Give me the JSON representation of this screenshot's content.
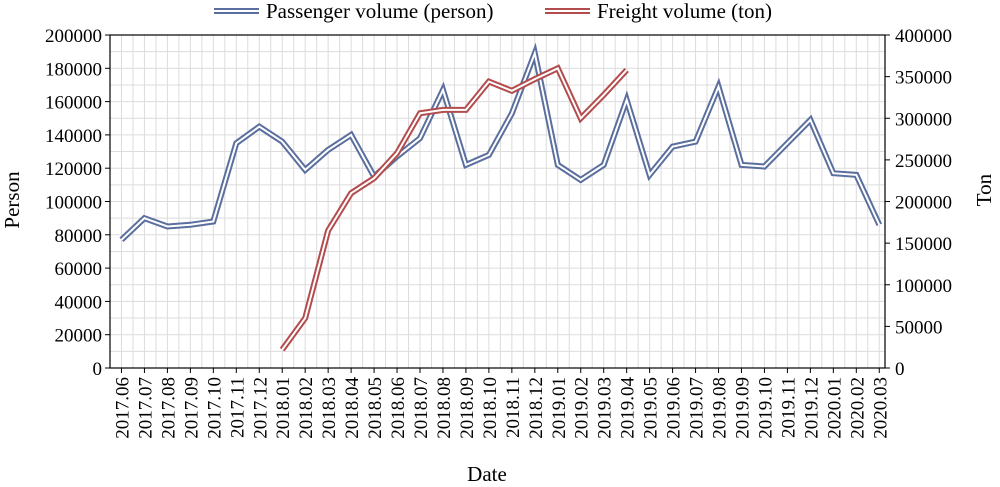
{
  "chart_data": {
    "type": "line",
    "xlabel": "Date",
    "ylabel_left": "Person",
    "ylabel_right": "Ton",
    "ylim_left": [
      0,
      200000
    ],
    "ylim_right": [
      0,
      400000
    ],
    "yticks_left": [
      "0",
      "20000",
      "40000",
      "60000",
      "80000",
      "100000",
      "120000",
      "140000",
      "160000",
      "180000",
      "200000"
    ],
    "yticks_right": [
      "0",
      "50000",
      "100000",
      "150000",
      "200000",
      "250000",
      "300000",
      "350000",
      "400000"
    ],
    "legend_position": "top-center",
    "grid": true,
    "categories": [
      "2017.06",
      "2017.07",
      "2017.08",
      "2017.09",
      "2017.10",
      "2017.11",
      "2017.12",
      "2018.01",
      "2018.02",
      "2018.03",
      "2018.04",
      "2018.05",
      "2018.06",
      "2018.07",
      "2018.08",
      "2018.09",
      "2018.10",
      "2018.11",
      "2018.12",
      "2019.01",
      "2019.02",
      "2019.03",
      "2019.04",
      "2019.05",
      "2019.06",
      "2019.07",
      "2019.08",
      "2019.09",
      "2019.10",
      "2019.11",
      "2019.12",
      "2020.01",
      "2020.02",
      "2020.03"
    ],
    "series": [
      {
        "name": "Passenger volume (person)",
        "axis": "left",
        "color": "#5b6f9e",
        "values": [
          77000,
          90000,
          85000,
          86000,
          88000,
          135000,
          145000,
          136000,
          119000,
          131000,
          140000,
          115000,
          127000,
          138000,
          167000,
          122000,
          128000,
          153000,
          189000,
          122000,
          113000,
          122000,
          161000,
          116000,
          133000,
          136000,
          169000,
          122000,
          121000,
          135000,
          149000,
          117000,
          116000,
          86000
        ]
      },
      {
        "name": "Freight volume (ton)",
        "axis": "right",
        "color": "#b34d4d",
        "values": [
          null,
          null,
          null,
          null,
          null,
          null,
          null,
          22000,
          60000,
          165000,
          210000,
          228000,
          258000,
          306000,
          310000,
          310000,
          344000,
          333000,
          347000,
          360000,
          300000,
          328000,
          358000,
          null,
          null,
          null,
          null,
          null,
          null,
          null,
          null,
          null,
          null,
          null
        ]
      }
    ]
  }
}
